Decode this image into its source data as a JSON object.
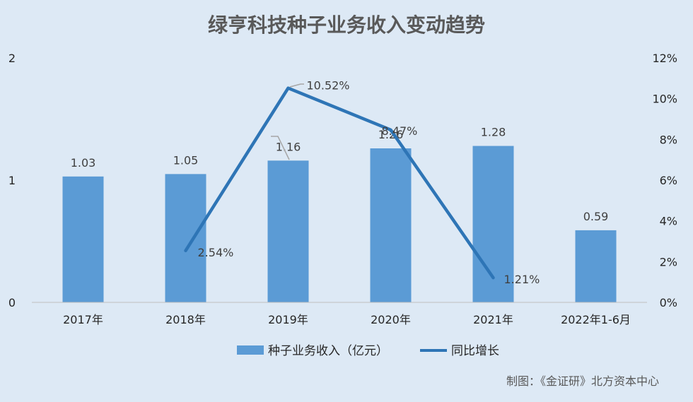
{
  "chart_data": {
    "type": "bar",
    "title": "绿亨科技种子业务收入变动趋势",
    "categories": [
      "2017年",
      "2018年",
      "2019年",
      "2020年",
      "2021年",
      "2022年1-6月"
    ],
    "series": [
      {
        "name": "种子业务收入（亿元）",
        "type": "bar",
        "axis": "left",
        "values": [
          1.03,
          1.05,
          1.16,
          1.26,
          1.28,
          0.59
        ],
        "labels": [
          "1.03",
          "1.05",
          "1.16",
          "1.26",
          "1.28",
          "0.59"
        ],
        "color": "#5b9bd5"
      },
      {
        "name": "同比增长",
        "type": "line",
        "axis": "right",
        "values": [
          null,
          2.54,
          10.52,
          8.47,
          1.21,
          null
        ],
        "labels": [
          "",
          "2.54%",
          "10.52%",
          "8.47%",
          "1.21%",
          ""
        ],
        "color": "#2e75b6"
      }
    ],
    "y_left": {
      "min": 0,
      "max": 2,
      "ticks": [
        "0",
        "1",
        "2"
      ]
    },
    "y_right": {
      "min": 0,
      "max": 12,
      "ticks": [
        "0%",
        "2%",
        "4%",
        "6%",
        "8%",
        "10%",
        "12%"
      ]
    },
    "legend_position": "bottom",
    "grid": false
  },
  "source_note": "制图：《金证研》北方资本中心"
}
